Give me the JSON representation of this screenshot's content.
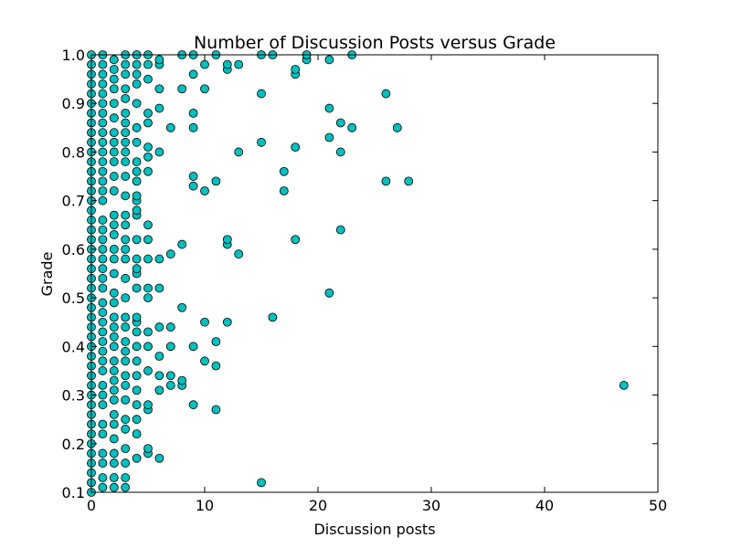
{
  "chart_data": {
    "type": "scatter",
    "title": "Number of Discussion Posts versus Grade",
    "xlabel": "Discussion posts",
    "ylabel": "Grade",
    "xlim": [
      0,
      50
    ],
    "ylim": [
      0.1,
      1.0
    ],
    "x_ticks": [
      "0",
      "10",
      "20",
      "30",
      "40",
      "50"
    ],
    "y_ticks": [
      "0.1",
      "0.2",
      "0.3",
      "0.4",
      "0.5",
      "0.6",
      "0.7",
      "0.8",
      "0.9",
      "1.0"
    ],
    "grid": false,
    "legend": "none",
    "marker_color": "#00bfbf",
    "marker_edge_color": "#000000",
    "series": [
      {
        "points": [
          [
            0,
            0.1
          ],
          [
            0,
            0.12
          ],
          [
            0,
            0.14
          ],
          [
            0,
            0.16
          ],
          [
            0,
            0.18
          ],
          [
            0,
            0.2
          ],
          [
            0,
            0.22
          ],
          [
            0,
            0.24
          ],
          [
            0,
            0.26
          ],
          [
            0,
            0.28
          ],
          [
            0,
            0.3
          ],
          [
            0,
            0.32
          ],
          [
            0,
            0.34
          ],
          [
            0,
            0.36
          ],
          [
            0,
            0.38
          ],
          [
            0,
            0.4
          ],
          [
            0,
            0.42
          ],
          [
            0,
            0.44
          ],
          [
            0,
            0.46
          ],
          [
            0,
            0.48
          ],
          [
            0,
            0.5
          ],
          [
            0,
            0.52
          ],
          [
            0,
            0.54
          ],
          [
            0,
            0.56
          ],
          [
            0,
            0.58
          ],
          [
            0,
            0.6
          ],
          [
            0,
            0.62
          ],
          [
            0,
            0.64
          ],
          [
            0,
            0.66
          ],
          [
            0,
            0.68
          ],
          [
            0,
            0.7
          ],
          [
            0,
            0.72
          ],
          [
            0,
            0.74
          ],
          [
            0,
            0.76
          ],
          [
            0,
            0.78
          ],
          [
            0,
            0.8
          ],
          [
            0,
            0.82
          ],
          [
            0,
            0.84
          ],
          [
            0,
            0.86
          ],
          [
            0,
            0.88
          ],
          [
            0,
            0.9
          ],
          [
            0,
            0.92
          ],
          [
            0,
            0.94
          ],
          [
            0,
            0.96
          ],
          [
            0,
            0.98
          ],
          [
            0,
            1.0
          ],
          [
            1,
            0.11
          ],
          [
            1,
            0.13
          ],
          [
            1,
            0.16
          ],
          [
            1,
            0.18
          ],
          [
            1,
            0.22
          ],
          [
            1,
            0.24
          ],
          [
            1,
            0.28
          ],
          [
            1,
            0.3
          ],
          [
            1,
            0.32
          ],
          [
            1,
            0.35
          ],
          [
            1,
            0.37
          ],
          [
            1,
            0.39
          ],
          [
            1,
            0.41
          ],
          [
            1,
            0.43
          ],
          [
            1,
            0.45
          ],
          [
            1,
            0.47
          ],
          [
            1,
            0.49
          ],
          [
            1,
            0.52
          ],
          [
            1,
            0.54
          ],
          [
            1,
            0.56
          ],
          [
            1,
            0.58
          ],
          [
            1,
            0.6
          ],
          [
            1,
            0.62
          ],
          [
            1,
            0.64
          ],
          [
            1,
            0.66
          ],
          [
            1,
            0.7
          ],
          [
            1,
            0.72
          ],
          [
            1,
            0.74
          ],
          [
            1,
            0.76
          ],
          [
            1,
            0.78
          ],
          [
            1,
            0.8
          ],
          [
            1,
            0.82
          ],
          [
            1,
            0.84
          ],
          [
            1,
            0.86
          ],
          [
            1,
            0.88
          ],
          [
            1,
            0.9
          ],
          [
            1,
            0.92
          ],
          [
            1,
            0.94
          ],
          [
            1,
            0.96
          ],
          [
            1,
            0.98
          ],
          [
            1,
            1.0
          ],
          [
            2,
            0.11
          ],
          [
            2,
            0.13
          ],
          [
            2,
            0.16
          ],
          [
            2,
            0.18
          ],
          [
            2,
            0.21
          ],
          [
            2,
            0.24
          ],
          [
            2,
            0.26
          ],
          [
            2,
            0.29
          ],
          [
            2,
            0.31
          ],
          [
            2,
            0.33
          ],
          [
            2,
            0.35
          ],
          [
            2,
            0.37
          ],
          [
            2,
            0.4
          ],
          [
            2,
            0.42
          ],
          [
            2,
            0.44
          ],
          [
            2,
            0.46
          ],
          [
            2,
            0.49
          ],
          [
            2,
            0.51
          ],
          [
            2,
            0.55
          ],
          [
            2,
            0.58
          ],
          [
            2,
            0.6
          ],
          [
            2,
            0.63
          ],
          [
            2,
            0.65
          ],
          [
            2,
            0.67
          ],
          [
            2,
            0.72
          ],
          [
            2,
            0.75
          ],
          [
            2,
            0.78
          ],
          [
            2,
            0.8
          ],
          [
            2,
            0.82
          ],
          [
            2,
            0.84
          ],
          [
            2,
            0.87
          ],
          [
            2,
            0.9
          ],
          [
            2,
            0.93
          ],
          [
            2,
            0.95
          ],
          [
            2,
            0.97
          ],
          [
            2,
            0.99
          ],
          [
            3,
            0.11
          ],
          [
            3,
            0.13
          ],
          [
            3,
            0.16
          ],
          [
            3,
            0.19
          ],
          [
            3,
            0.23
          ],
          [
            3,
            0.25
          ],
          [
            3,
            0.29
          ],
          [
            3,
            0.32
          ],
          [
            3,
            0.34
          ],
          [
            3,
            0.37
          ],
          [
            3,
            0.39
          ],
          [
            3,
            0.41
          ],
          [
            3,
            0.44
          ],
          [
            3,
            0.46
          ],
          [
            3,
            0.5
          ],
          [
            3,
            0.54
          ],
          [
            3,
            0.58
          ],
          [
            3,
            0.6
          ],
          [
            3,
            0.62
          ],
          [
            3,
            0.65
          ],
          [
            3,
            0.67
          ],
          [
            3,
            0.71
          ],
          [
            3,
            0.75
          ],
          [
            3,
            0.78
          ],
          [
            3,
            0.8
          ],
          [
            3,
            0.82
          ],
          [
            3,
            0.84
          ],
          [
            3,
            0.86
          ],
          [
            3,
            0.88
          ],
          [
            3,
            0.91
          ],
          [
            3,
            0.93
          ],
          [
            3,
            0.96
          ],
          [
            3,
            0.98
          ],
          [
            3,
            1.0
          ],
          [
            4,
            0.17
          ],
          [
            4,
            0.22
          ],
          [
            4,
            0.25
          ],
          [
            4,
            0.28
          ],
          [
            4,
            0.31
          ],
          [
            4,
            0.34
          ],
          [
            4,
            0.37
          ],
          [
            4,
            0.4
          ],
          [
            4,
            0.43
          ],
          [
            4,
            0.45
          ],
          [
            4,
            0.46
          ],
          [
            4,
            0.52
          ],
          [
            4,
            0.55
          ],
          [
            4,
            0.56
          ],
          [
            4,
            0.58
          ],
          [
            4,
            0.62
          ],
          [
            4,
            0.67
          ],
          [
            4,
            0.68
          ],
          [
            4,
            0.7
          ],
          [
            4,
            0.71
          ],
          [
            4,
            0.74
          ],
          [
            4,
            0.76
          ],
          [
            4,
            0.78
          ],
          [
            4,
            0.82
          ],
          [
            4,
            0.85
          ],
          [
            4,
            0.9
          ],
          [
            4,
            0.94
          ],
          [
            4,
            0.96
          ],
          [
            4,
            0.98
          ],
          [
            4,
            1.0
          ],
          [
            5,
            0.18
          ],
          [
            5,
            0.19
          ],
          [
            5,
            0.27
          ],
          [
            5,
            0.28
          ],
          [
            5,
            0.35
          ],
          [
            5,
            0.4
          ],
          [
            5,
            0.43
          ],
          [
            5,
            0.5
          ],
          [
            5,
            0.52
          ],
          [
            5,
            0.58
          ],
          [
            5,
            0.62
          ],
          [
            5,
            0.65
          ],
          [
            5,
            0.76
          ],
          [
            5,
            0.79
          ],
          [
            5,
            0.81
          ],
          [
            5,
            0.86
          ],
          [
            5,
            0.88
          ],
          [
            5,
            0.95
          ],
          [
            5,
            0.98
          ],
          [
            5,
            1.0
          ],
          [
            6,
            0.17
          ],
          [
            6,
            0.31
          ],
          [
            6,
            0.34
          ],
          [
            6,
            0.38
          ],
          [
            6,
            0.44
          ],
          [
            6,
            0.52
          ],
          [
            6,
            0.58
          ],
          [
            6,
            0.8
          ],
          [
            6,
            0.89
          ],
          [
            6,
            0.93
          ],
          [
            6,
            0.98
          ],
          [
            6,
            0.99
          ],
          [
            7,
            0.32
          ],
          [
            7,
            0.34
          ],
          [
            7,
            0.4
          ],
          [
            7,
            0.44
          ],
          [
            7,
            0.59
          ],
          [
            7,
            0.85
          ],
          [
            8,
            0.32
          ],
          [
            8,
            0.33
          ],
          [
            8,
            0.48
          ],
          [
            8,
            0.61
          ],
          [
            8,
            0.93
          ],
          [
            8,
            1.0
          ],
          [
            9,
            0.28
          ],
          [
            9,
            0.4
          ],
          [
            9,
            0.73
          ],
          [
            9,
            0.75
          ],
          [
            9,
            0.85
          ],
          [
            9,
            0.88
          ],
          [
            9,
            0.96
          ],
          [
            9,
            1.0
          ],
          [
            10,
            0.37
          ],
          [
            10,
            0.45
          ],
          [
            10,
            0.72
          ],
          [
            10,
            0.93
          ],
          [
            10,
            0.98
          ],
          [
            11,
            0.27
          ],
          [
            11,
            0.36
          ],
          [
            11,
            0.41
          ],
          [
            11,
            0.74
          ],
          [
            11,
            1.0
          ],
          [
            12,
            0.45
          ],
          [
            12,
            0.61
          ],
          [
            12,
            0.62
          ],
          [
            12,
            0.97
          ],
          [
            12,
            0.98
          ],
          [
            13,
            0.59
          ],
          [
            13,
            0.8
          ],
          [
            13,
            0.98
          ],
          [
            15,
            0.12
          ],
          [
            15,
            0.82
          ],
          [
            15,
            0.92
          ],
          [
            15,
            1.0
          ],
          [
            16,
            0.46
          ],
          [
            16,
            1.0
          ],
          [
            17,
            0.72
          ],
          [
            17,
            0.76
          ],
          [
            18,
            0.62
          ],
          [
            18,
            0.81
          ],
          [
            18,
            0.96
          ],
          [
            18,
            0.97
          ],
          [
            19,
            0.99
          ],
          [
            19,
            1.0
          ],
          [
            21,
            0.51
          ],
          [
            21,
            0.83
          ],
          [
            21,
            0.89
          ],
          [
            21,
            0.99
          ],
          [
            22,
            0.64
          ],
          [
            22,
            0.8
          ],
          [
            22,
            0.86
          ],
          [
            23,
            0.85
          ],
          [
            23,
            1.0
          ],
          [
            26,
            0.74
          ],
          [
            26,
            0.92
          ],
          [
            27,
            0.85
          ],
          [
            28,
            0.74
          ],
          [
            47,
            0.32
          ]
        ]
      }
    ]
  }
}
